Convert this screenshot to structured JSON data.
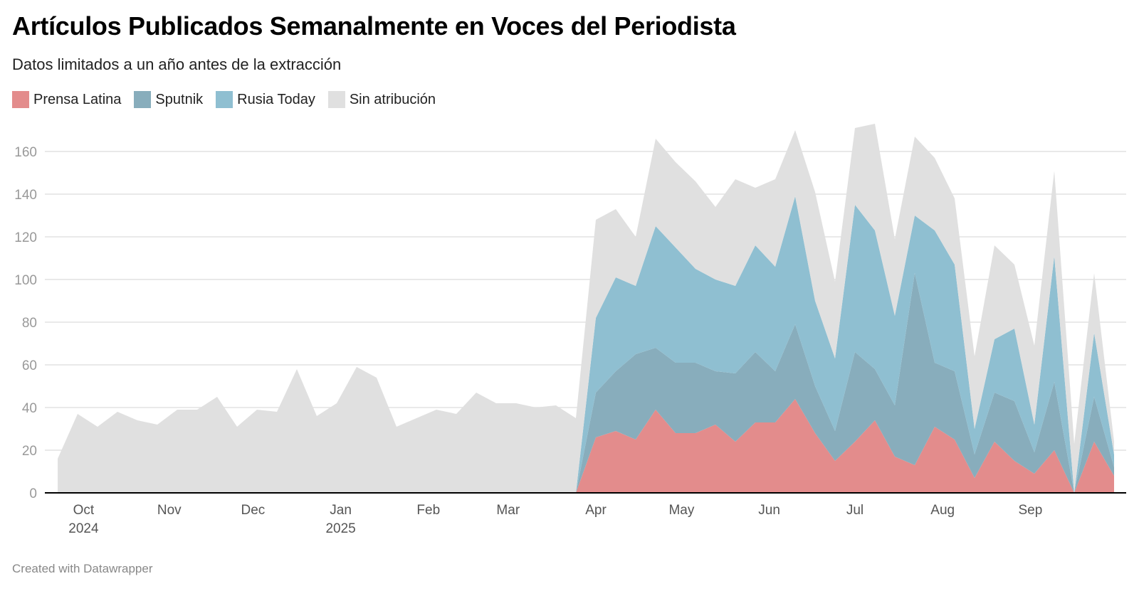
{
  "header": {
    "title": "Artículos Publicados Semanalmente en Voces del Periodista",
    "subtitle": "Datos limitados a un año antes de la extracción"
  },
  "footer": {
    "credit": "Created with Datawrapper"
  },
  "chart_data": {
    "type": "area",
    "stacked": true,
    "title": "Artículos Publicados Semanalmente en Voces del Periodista",
    "subtitle": "Datos limitados a un año antes de la extracción",
    "xlabel": "",
    "ylabel": "",
    "ylim": [
      0,
      170
    ],
    "yticks": [
      0,
      20,
      40,
      60,
      80,
      100,
      120,
      140,
      160
    ],
    "grid": true,
    "legend_position": "top-left",
    "x_unit": "week",
    "x_tick_labels": [
      {
        "week": 1.3,
        "label": "Oct",
        "sublabel": "2024"
      },
      {
        "week": 5.6,
        "label": "Nov",
        "sublabel": ""
      },
      {
        "week": 9.8,
        "label": "Dec",
        "sublabel": ""
      },
      {
        "week": 14.2,
        "label": "Jan",
        "sublabel": "2025"
      },
      {
        "week": 18.6,
        "label": "Feb",
        "sublabel": ""
      },
      {
        "week": 22.6,
        "label": "Mar",
        "sublabel": ""
      },
      {
        "week": 27.0,
        "label": "Apr",
        "sublabel": ""
      },
      {
        "week": 31.3,
        "label": "May",
        "sublabel": ""
      },
      {
        "week": 35.7,
        "label": "Jun",
        "sublabel": ""
      },
      {
        "week": 40.0,
        "label": "Jul",
        "sublabel": ""
      },
      {
        "week": 44.4,
        "label": "Aug",
        "sublabel": ""
      },
      {
        "week": 48.8,
        "label": "Sep",
        "sublabel": ""
      }
    ],
    "weeks": 54,
    "series": [
      {
        "name": "Prensa Latina",
        "color": "#e38c8c",
        "values": [
          0,
          0,
          0,
          0,
          0,
          0,
          0,
          0,
          0,
          0,
          0,
          0,
          0,
          0,
          0,
          0,
          0,
          0,
          0,
          0,
          0,
          0,
          0,
          0,
          0,
          0,
          0,
          26,
          29,
          25,
          39,
          28,
          28,
          32,
          24,
          33,
          33,
          44,
          28,
          15,
          24,
          34,
          17,
          13,
          31,
          25,
          7,
          24,
          15,
          9,
          20,
          0,
          24,
          8
        ]
      },
      {
        "name": "Sputnik",
        "color": "#88adbc",
        "values": [
          0,
          0,
          0,
          0,
          0,
          0,
          0,
          0,
          0,
          0,
          0,
          0,
          0,
          0,
          0,
          0,
          0,
          0,
          0,
          0,
          0,
          0,
          0,
          0,
          0,
          0,
          0,
          21,
          28,
          40,
          29,
          33,
          33,
          25,
          32,
          33,
          24,
          35,
          22,
          14,
          42,
          24,
          24,
          90,
          30,
          32,
          11,
          23,
          28,
          10,
          32,
          0,
          21,
          4
        ]
      },
      {
        "name": "Rusia Today",
        "color": "#8fbfd1",
        "values": [
          0,
          0,
          0,
          0,
          0,
          0,
          0,
          0,
          0,
          0,
          0,
          0,
          0,
          0,
          0,
          0,
          0,
          0,
          0,
          0,
          0,
          0,
          0,
          0,
          0,
          0,
          0,
          35,
          44,
          32,
          57,
          54,
          44,
          43,
          41,
          50,
          49,
          60,
          40,
          34,
          69,
          65,
          42,
          27,
          62,
          50,
          12,
          25,
          34,
          13,
          59,
          0,
          30,
          6
        ]
      },
      {
        "name": "Sin atribución",
        "color": "#e0e0e0",
        "values": [
          16,
          37,
          31,
          38,
          34,
          32,
          39,
          39,
          45,
          31,
          39,
          38,
          58,
          36,
          42,
          59,
          54,
          31,
          35,
          39,
          37,
          47,
          42,
          42,
          40,
          41,
          35,
          46,
          32,
          23,
          41,
          40,
          41,
          34,
          50,
          27,
          41,
          31,
          51,
          36,
          36,
          50,
          36,
          37,
          34,
          31,
          34,
          44,
          30,
          37,
          40,
          23,
          28,
          6
        ]
      }
    ]
  }
}
